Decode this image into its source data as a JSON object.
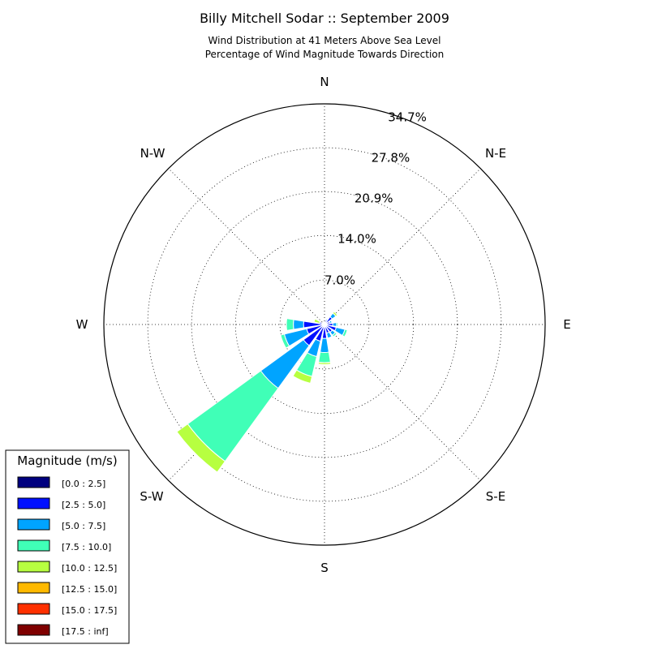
{
  "chart_data": {
    "type": "windrose",
    "title": "Billy Mitchell Sodar :: September 2009",
    "subtitle_line1": "Wind Distribution at 41 Meters Above Sea Level",
    "subtitle_line2": "Percentage of Wind Magnitude Towards Direction",
    "direction_labels": {
      "N": "N",
      "NE": "N-E",
      "E": "E",
      "SE": "S-E",
      "S": "S",
      "SW": "S-W",
      "W": "W",
      "NW": "N-W"
    },
    "radial_ticks": [
      7.0,
      14.0,
      20.9,
      27.8,
      34.7
    ],
    "radial_tick_labels": [
      "7.0%",
      "14.0%",
      "20.9%",
      "27.8%",
      "34.7%"
    ],
    "r_max": 34.7,
    "legend": {
      "title": "Magnitude (m/s)",
      "bins": [
        {
          "label": "[0.0 : 2.5]",
          "color": "#00007f"
        },
        {
          "label": "[2.5 : 5.0]",
          "color": "#0010ff"
        },
        {
          "label": "[5.0 : 7.5]",
          "color": "#00a4ff"
        },
        {
          "label": "[7.5 : 10.0]",
          "color": "#40ffb7"
        },
        {
          "label": "[10.0 : 12.5]",
          "color": "#b7ff40"
        },
        {
          "label": "[12.5 : 15.0]",
          "color": "#ffb900"
        },
        {
          "label": "[15.0 : 17.5]",
          "color": "#ff3000"
        },
        {
          "label": "[17.5 : inf]",
          "color": "#7f0000"
        }
      ]
    },
    "sector_width_deg": 22.5,
    "directions_deg": [
      0,
      22.5,
      45,
      67.5,
      90,
      112.5,
      135,
      157.5,
      180,
      202.5,
      225,
      247.5,
      270,
      292.5,
      315,
      337.5
    ],
    "series": [
      {
        "name": "[0.0 : 2.5]",
        "values": [
          0.1,
          0.1,
          0.2,
          0.2,
          0.2,
          0.2,
          0.2,
          0.2,
          0.2,
          0.2,
          0.2,
          0.2,
          0.2,
          0.2,
          0.1,
          0.1
        ]
      },
      {
        "name": "[2.5 : 5.0]",
        "values": [
          0.3,
          0.6,
          1.3,
          0.7,
          1.1,
          1.7,
          1.3,
          1.2,
          2.0,
          2.5,
          3.9,
          2.7,
          3.1,
          0.6,
          0.2,
          0.2
        ]
      },
      {
        "name": "[5.0 : 7.5]",
        "values": [
          0.0,
          0.2,
          0.7,
          0.3,
          0.6,
          1.4,
          0.6,
          0.8,
          2.2,
          2.5,
          8.3,
          3.6,
          1.6,
          0.0,
          0.0,
          0.0
        ]
      },
      {
        "name": "[7.5 : 10.0]",
        "values": [
          0.0,
          0.0,
          0.0,
          0.0,
          0.2,
          0.4,
          0.3,
          0.0,
          1.6,
          3.2,
          14.2,
          0.6,
          1.1,
          0.0,
          0.0,
          0.0
        ]
      },
      {
        "name": "[10.0 : 12.5]",
        "values": [
          0.0,
          0.0,
          0.3,
          0.0,
          0.0,
          0.0,
          0.0,
          0.0,
          0.3,
          1.1,
          2.1,
          0.0,
          0.0,
          0.9,
          0.0,
          0.0
        ]
      },
      {
        "name": "[12.5 : 15.0]",
        "values": [
          0.0,
          0.0,
          0.0,
          0.0,
          0.0,
          0.0,
          0.0,
          0.0,
          0.0,
          0.0,
          0.0,
          0.0,
          0.0,
          0.0,
          0.0,
          0.0
        ]
      },
      {
        "name": "[15.0 : 17.5]",
        "values": [
          0.0,
          0.0,
          0.0,
          0.0,
          0.0,
          0.0,
          0.0,
          0.0,
          0.0,
          0.0,
          0.0,
          0.0,
          0.0,
          0.0,
          0.0,
          0.0
        ]
      },
      {
        "name": "[17.5 : inf]",
        "values": [
          0.0,
          0.0,
          0.0,
          0.0,
          0.0,
          0.0,
          0.0,
          0.0,
          0.0,
          0.0,
          0.0,
          0.0,
          0.0,
          0.0,
          0.0,
          0.0
        ]
      }
    ]
  }
}
